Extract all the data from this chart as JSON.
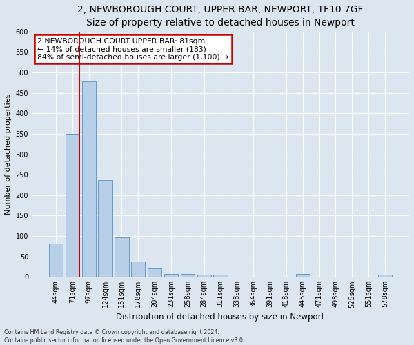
{
  "title1": "2, NEWBOROUGH COURT, UPPER BAR, NEWPORT, TF10 7GF",
  "title2": "Size of property relative to detached houses in Newport",
  "xlabel": "Distribution of detached houses by size in Newport",
  "ylabel": "Number of detached properties",
  "bar_labels": [
    "44sqm",
    "71sqm",
    "97sqm",
    "124sqm",
    "151sqm",
    "178sqm",
    "204sqm",
    "231sqm",
    "258sqm",
    "284sqm",
    "311sqm",
    "338sqm",
    "364sqm",
    "391sqm",
    "418sqm",
    "445sqm",
    "471sqm",
    "498sqm",
    "525sqm",
    "551sqm",
    "578sqm"
  ],
  "bar_values": [
    82,
    350,
    478,
    236,
    97,
    38,
    20,
    8,
    8,
    5,
    5,
    0,
    0,
    0,
    0,
    7,
    0,
    0,
    0,
    0,
    5
  ],
  "bar_color": "#b8cfe8",
  "bar_edge_color": "#6699cc",
  "vline_x_index": 1,
  "vline_color": "#cc0000",
  "annotation_text": "2 NEWBOROUGH COURT UPPER BAR: 81sqm\n← 14% of detached houses are smaller (183)\n84% of semi-detached houses are larger (1,100) →",
  "annotation_box_color": "#ffffff",
  "annotation_border_color": "#cc0000",
  "ylim": [
    0,
    600
  ],
  "yticks": [
    0,
    50,
    100,
    150,
    200,
    250,
    300,
    350,
    400,
    450,
    500,
    550,
    600
  ],
  "footer1": "Contains HM Land Registry data © Crown copyright and database right 2024.",
  "footer2": "Contains public sector information licensed under the Open Government Licence v3.0.",
  "fig_background": "#dce6f0",
  "plot_background": "#dce6f0",
  "grid_color": "#ffffff",
  "title1_fontsize": 10,
  "title2_fontsize": 9,
  "ylabel_fontsize": 8,
  "xlabel_fontsize": 8.5,
  "tick_fontsize": 7,
  "annotation_fontsize": 7.8,
  "footer_fontsize": 5.8
}
